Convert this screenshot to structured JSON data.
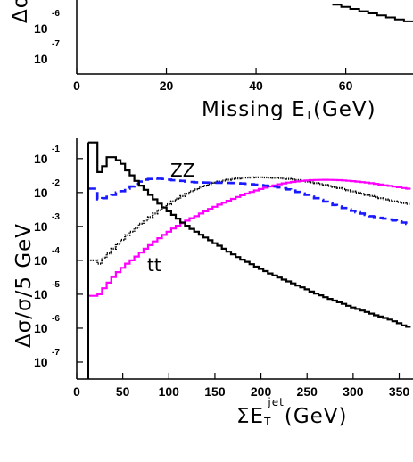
{
  "chart_data": [
    {
      "type": "line",
      "step": true,
      "partial": "cropped at top",
      "xlabel_main": "Missing E",
      "xlabel_sub": "T",
      "xlabel_unit": "(GeV)",
      "ylabel_visible": "Δσ",
      "xlim": [
        0,
        75
      ],
      "xticks": [
        "0",
        "20",
        "40",
        "60"
      ],
      "yticks": [
        {
          "base": "10",
          "exp": "-6"
        },
        {
          "base": "10",
          "exp": "-7"
        }
      ],
      "series": [
        {
          "color": "#000000",
          "x": [
            58,
            60,
            62,
            64,
            66,
            68,
            70,
            72,
            74,
            75
          ],
          "y": [
            1e-05,
            8e-06,
            6.5e-06,
            5.2e-06,
            4.2e-06,
            3.4e-06,
            2.8e-06,
            2.3e-06,
            1.9e-06,
            1.9e-06
          ]
        }
      ]
    },
    {
      "type": "line",
      "step": true,
      "ylabel": "Δσ/σ/5 GeV",
      "xlabel_main": "ΣE",
      "xlabel_sub": "T",
      "xlabel_sup": "jet",
      "xlabel_unit": "(GeV)",
      "xlim": [
        0,
        365
      ],
      "ylim_log10": [
        -7.5,
        -0.4
      ],
      "xticks": [
        "0",
        "50",
        "100",
        "150",
        "200",
        "250",
        "300",
        "350"
      ],
      "yticks": [
        {
          "base": "10",
          "exp": "-1"
        },
        {
          "base": "10",
          "exp": "-2"
        },
        {
          "base": "10",
          "exp": "-3"
        },
        {
          "base": "10",
          "exp": "-4"
        },
        {
          "base": "10",
          "exp": "-5"
        },
        {
          "base": "10",
          "exp": "-6"
        },
        {
          "base": "10",
          "exp": "-7"
        }
      ],
      "annotations": [
        "ZZ",
        "tt"
      ],
      "series": [
        {
          "style": "solid",
          "color": "#000000",
          "x": [
            15,
            20,
            25,
            30,
            35,
            40,
            45,
            50,
            55,
            60,
            65,
            70,
            75,
            80,
            85,
            90,
            95,
            100,
            105,
            110,
            115,
            120,
            125,
            130,
            135,
            140,
            145,
            150,
            155,
            160,
            165,
            170,
            175,
            180,
            185,
            190,
            195,
            200,
            205,
            210,
            215,
            220,
            225,
            230,
            235,
            240,
            245,
            250,
            255,
            260,
            265,
            270,
            275,
            280,
            285,
            290,
            295,
            300,
            305,
            310,
            315,
            320,
            325,
            330,
            335,
            340,
            345,
            350,
            355,
            360
          ],
          "y": [
            0.3,
            0.3,
            0.04,
            0.06,
            0.11,
            0.11,
            0.09,
            0.07,
            0.045,
            0.032,
            0.022,
            0.016,
            0.012,
            0.0085,
            0.0063,
            0.0047,
            0.0036,
            0.0028,
            0.0022,
            0.0017,
            0.0013,
            0.00105,
            0.00085,
            0.0007,
            0.00057,
            0.00047,
            0.00039,
            0.00032,
            0.00027,
            0.00022,
            0.00018,
            0.00015,
            0.000125,
            0.000105,
            9e-05,
            7.7e-05,
            6.5e-05,
            5.6e-05,
            4.8e-05,
            4.1e-05,
            3.6e-05,
            3.1e-05,
            2.7e-05,
            2.4e-05,
            2.1e-05,
            1.8e-05,
            1.6e-05,
            1.4e-05,
            1.2e-05,
            1.05e-05,
            9.3e-06,
            8.2e-06,
            7.3e-06,
            6.5e-06,
            5.8e-06,
            5.2e-06,
            4.6e-06,
            4.1e-06,
            3.7e-06,
            3.3e-06,
            3e-06,
            2.7e-06,
            2.4e-06,
            2.2e-06,
            2e-06,
            1.8e-06,
            1.6e-06,
            1.4e-06,
            1.2e-06,
            1.1e-06
          ]
        },
        {
          "style": "dashed",
          "color": "#1a1aff",
          "label": "ZZ",
          "x": [
            15,
            20,
            25,
            30,
            35,
            40,
            45,
            50,
            55,
            60,
            65,
            70,
            75,
            80,
            85,
            90,
            95,
            100,
            105,
            110,
            115,
            120,
            125,
            130,
            135,
            140,
            145,
            150,
            155,
            160,
            165,
            170,
            175,
            180,
            185,
            190,
            195,
            200,
            205,
            210,
            215,
            220,
            225,
            230,
            235,
            240,
            245,
            250,
            255,
            260,
            265,
            270,
            275,
            280,
            285,
            290,
            295,
            300,
            305,
            310,
            315,
            320,
            325,
            330,
            335,
            340,
            345,
            350,
            355,
            360
          ],
          "y": [
            0.013,
            0.013,
            0.0063,
            0.0068,
            0.0075,
            0.0085,
            0.01,
            0.011,
            0.013,
            0.015,
            0.018,
            0.021,
            0.024,
            0.025,
            0.026,
            0.0255,
            0.025,
            0.024,
            0.023,
            0.0225,
            0.022,
            0.021,
            0.0205,
            0.02,
            0.0198,
            0.0196,
            0.0195,
            0.0195,
            0.0194,
            0.0193,
            0.0192,
            0.019,
            0.0188,
            0.0185,
            0.018,
            0.0175,
            0.017,
            0.0165,
            0.016,
            0.0155,
            0.015,
            0.0142,
            0.0133,
            0.0124,
            0.0114,
            0.0104,
            0.0094,
            0.0085,
            0.0076,
            0.0068,
            0.0061,
            0.0054,
            0.0048,
            0.0043,
            0.0039,
            0.0035,
            0.0032,
            0.0029,
            0.0026,
            0.0024,
            0.0022,
            0.002,
            0.0019,
            0.0018,
            0.0017,
            0.0016,
            0.0015,
            0.0014,
            0.0013,
            0.0012
          ]
        },
        {
          "style": "dotted",
          "color": "#000000",
          "x": [
            15,
            20,
            25,
            30,
            35,
            40,
            45,
            50,
            55,
            60,
            65,
            70,
            75,
            80,
            85,
            90,
            95,
            100,
            105,
            110,
            115,
            120,
            125,
            130,
            135,
            140,
            145,
            150,
            155,
            160,
            165,
            170,
            175,
            180,
            185,
            190,
            195,
            200,
            205,
            210,
            215,
            220,
            225,
            230,
            235,
            240,
            245,
            250,
            255,
            260,
            265,
            270,
            275,
            280,
            285,
            290,
            295,
            300,
            305,
            310,
            315,
            320,
            325,
            330,
            335,
            340,
            345,
            350,
            355,
            360
          ],
          "y": [
            0.0001,
            0.0001,
            8e-05,
            0.00012,
            0.00016,
            0.00022,
            0.0003,
            0.0004,
            0.00055,
            0.0007,
            0.0009,
            0.0012,
            0.0015,
            0.0019,
            0.0024,
            0.003,
            0.0037,
            0.0045,
            0.0055,
            0.0066,
            0.0078,
            0.0092,
            0.011,
            0.0125,
            0.0142,
            0.016,
            0.0178,
            0.0195,
            0.021,
            0.0225,
            0.0238,
            0.025,
            0.026,
            0.0268,
            0.0274,
            0.0278,
            0.028,
            0.028,
            0.0278,
            0.0275,
            0.0271,
            0.0266,
            0.026,
            0.0252,
            0.0243,
            0.0233,
            0.0222,
            0.0211,
            0.02,
            0.0189,
            0.0178,
            0.0167,
            0.0156,
            0.0146,
            0.0136,
            0.0126,
            0.0117,
            0.0108,
            0.0099,
            0.0092,
            0.0085,
            0.0079,
            0.0073,
            0.0068,
            0.0063,
            0.0059,
            0.0055,
            0.0052,
            0.0049,
            0.0046
          ]
        },
        {
          "style": "solid",
          "color": "#ff00ff",
          "label": "tt",
          "x": [
            15,
            20,
            25,
            30,
            35,
            40,
            45,
            50,
            55,
            60,
            65,
            70,
            75,
            80,
            85,
            90,
            95,
            100,
            105,
            110,
            115,
            120,
            125,
            130,
            135,
            140,
            145,
            150,
            155,
            160,
            165,
            170,
            175,
            180,
            185,
            190,
            195,
            200,
            205,
            210,
            215,
            220,
            225,
            230,
            235,
            240,
            245,
            250,
            255,
            260,
            265,
            270,
            275,
            280,
            285,
            290,
            295,
            300,
            305,
            310,
            315,
            320,
            325,
            330,
            335,
            340,
            345,
            350,
            355,
            360
          ],
          "y": [
            9e-06,
            9e-06,
            1e-05,
            1.5e-05,
            2.2e-05,
            3.2e-05,
            4.5e-05,
            6e-05,
            8e-05,
            0.0001,
            0.00013,
            0.00017,
            0.00022,
            0.00028,
            0.00036,
            0.00045,
            0.00056,
            0.0007,
            0.00087,
            0.00105,
            0.00125,
            0.00148,
            0.00175,
            0.002,
            0.0024,
            0.0028,
            0.0033,
            0.0038,
            0.0044,
            0.005,
            0.0057,
            0.0065,
            0.0074,
            0.0083,
            0.0093,
            0.0104,
            0.0115,
            0.0127,
            0.0139,
            0.0151,
            0.0163,
            0.0175,
            0.0186,
            0.0196,
            0.0205,
            0.0213,
            0.022,
            0.0226,
            0.0231,
            0.0234,
            0.0236,
            0.0237,
            0.0236,
            0.0234,
            0.0231,
            0.0227,
            0.0222,
            0.0216,
            0.021,
            0.0203,
            0.0196,
            0.0188,
            0.018,
            0.0172,
            0.0164,
            0.0157,
            0.015,
            0.0143,
            0.0136,
            0.013
          ]
        }
      ]
    }
  ]
}
